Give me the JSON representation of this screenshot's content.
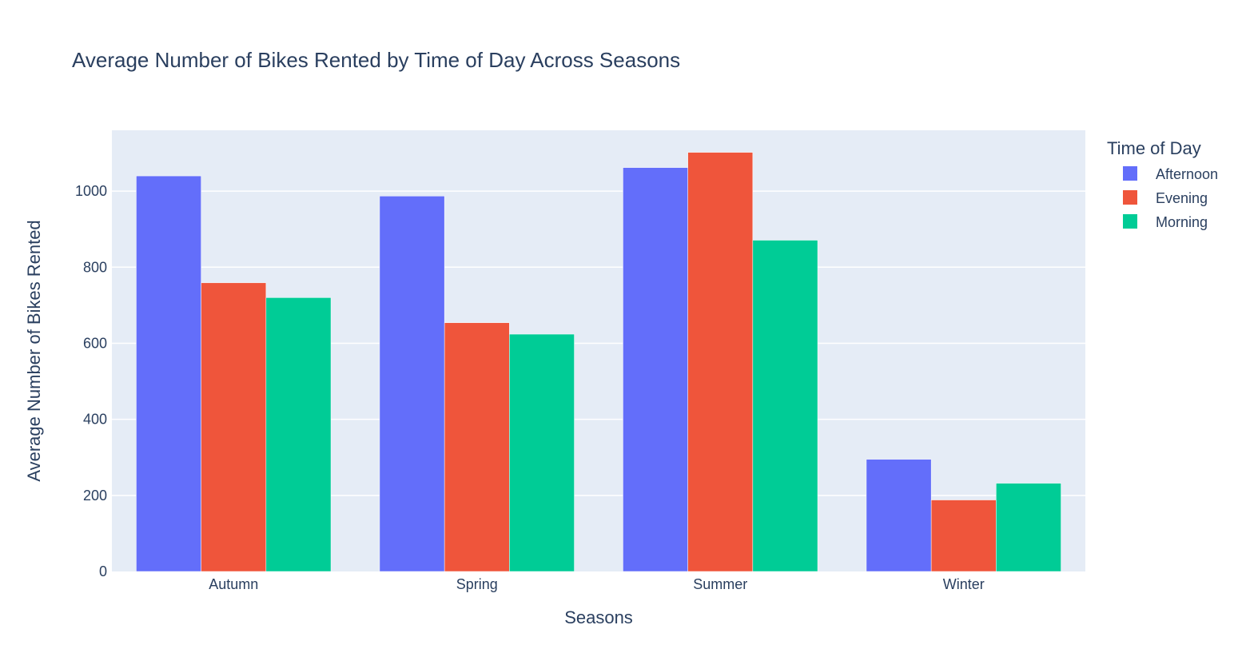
{
  "chart_data": {
    "type": "bar",
    "barmode": "group",
    "title": "Average Number of Bikes Rented by Time of Day Across Seasons",
    "xlabel": "Seasons",
    "ylabel": "Average Number of Bikes Rented",
    "categories": [
      "Autumn",
      "Spring",
      "Summer",
      "Winter"
    ],
    "ylim": [
      0,
      1160
    ],
    "yticks": [
      0,
      200,
      400,
      600,
      800,
      1000
    ],
    "ytick_labels": [
      "0",
      "200",
      "400",
      "600",
      "800",
      "1000"
    ],
    "grid": true,
    "legend": {
      "title": "Time of Day",
      "position": "top-right, outside plot"
    },
    "series": [
      {
        "name": "Afternoon",
        "color": "#636efa",
        "values": [
          1040,
          987,
          1062,
          295
        ]
      },
      {
        "name": "Evening",
        "color": "#ef553b",
        "values": [
          759,
          654,
          1102,
          188
        ]
      },
      {
        "name": "Morning",
        "color": "#00cc96",
        "values": [
          720,
          624,
          871,
          232
        ]
      }
    ],
    "colors": {
      "plot_background": "#e5ecf6",
      "gridline": "#ffffff",
      "text": "#2a3f5f"
    }
  }
}
